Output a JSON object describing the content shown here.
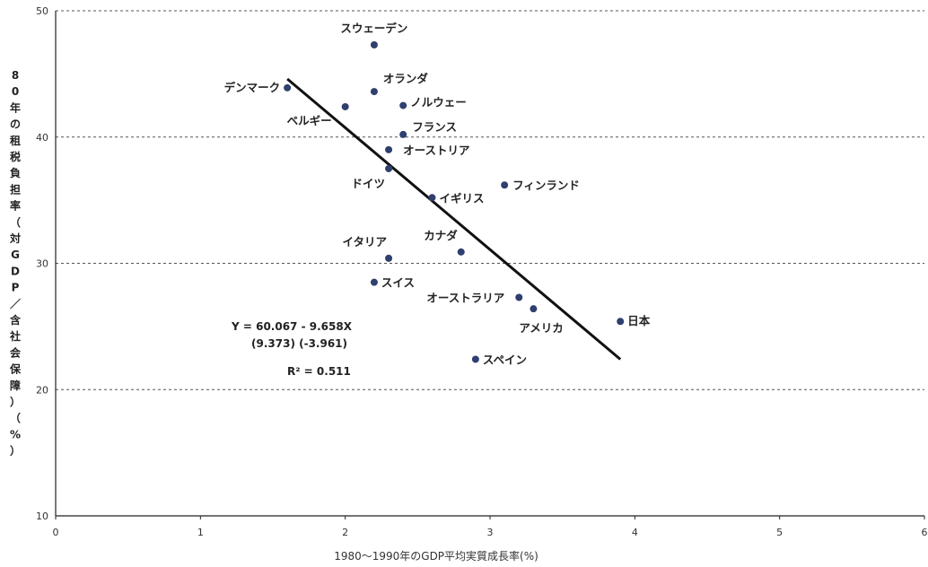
{
  "chart_data": {
    "type": "scatter",
    "xlabel": "1980～1990年のGDP平均実質成長率(%)",
    "ylabel": "80年の租税負担率（対GDP／含社会保障）（%）",
    "xlim": [
      0,
      6
    ],
    "ylim": [
      10,
      50
    ],
    "x_ticks": [
      "0",
      "1",
      "2",
      "3",
      "4",
      "5",
      "6"
    ],
    "y_ticks": [
      "10",
      "20",
      "30",
      "40",
      "50"
    ],
    "grid": "horizontal dashed",
    "points": [
      {
        "label": "スウェーデン",
        "x": 2.2,
        "y": 47.3
      },
      {
        "label": "デンマーク",
        "x": 1.6,
        "y": 43.9
      },
      {
        "label": "オランダ",
        "x": 2.2,
        "y": 43.6
      },
      {
        "label": "ノルウェー",
        "x": 2.4,
        "y": 42.5
      },
      {
        "label": "ベルギー",
        "x": 2.0,
        "y": 42.4
      },
      {
        "label": "フランス",
        "x": 2.4,
        "y": 40.2
      },
      {
        "label": "オーストリア",
        "x": 2.3,
        "y": 39.0
      },
      {
        "label": "ドイツ",
        "x": 2.3,
        "y": 37.5
      },
      {
        "label": "イギリス",
        "x": 2.6,
        "y": 35.2
      },
      {
        "label": "フィンランド",
        "x": 3.1,
        "y": 36.2
      },
      {
        "label": "カナダ",
        "x": 2.8,
        "y": 30.9
      },
      {
        "label": "イタリア",
        "x": 2.3,
        "y": 30.4
      },
      {
        "label": "スイス",
        "x": 2.2,
        "y": 28.5
      },
      {
        "label": "オーストラリア",
        "x": 3.2,
        "y": 27.3
      },
      {
        "label": "アメリカ",
        "x": 3.3,
        "y": 26.4
      },
      {
        "label": "日本",
        "x": 3.9,
        "y": 25.4
      },
      {
        "label": "スペイン",
        "x": 2.9,
        "y": 22.4
      }
    ],
    "trendline": {
      "x": [
        1.6,
        3.9
      ],
      "y": [
        44.6,
        22.4
      ]
    },
    "annotations": {
      "equation": "Y = 60.067 - 9.658X",
      "tvalues": "(9.373) (-3.961)",
      "r2": "R² = 0.511"
    },
    "colors": {
      "point": "#2f3f6f",
      "line": "#111111",
      "grid": "#555555"
    }
  }
}
